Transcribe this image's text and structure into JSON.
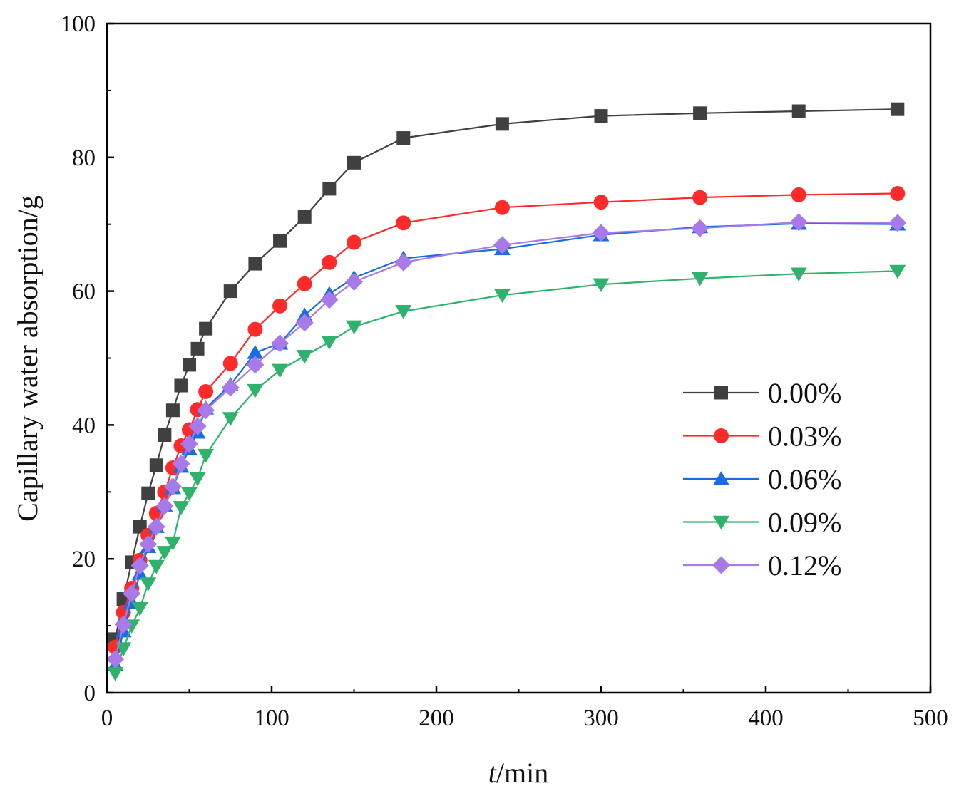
{
  "chart_data": {
    "type": "line",
    "title": "",
    "xlabel_italic": "t",
    "xlabel_rest": "/min",
    "ylabel": "Capillary water absorption/g",
    "xlim": [
      0,
      500
    ],
    "ylim": [
      0,
      100
    ],
    "xticks": [
      0,
      100,
      200,
      300,
      400,
      500
    ],
    "yticks": [
      0,
      20,
      40,
      60,
      80,
      100
    ],
    "grid": false,
    "legend_position": "center-right",
    "x": [
      5,
      10,
      15,
      20,
      25,
      30,
      35,
      40,
      45,
      50,
      55,
      60,
      75,
      90,
      105,
      120,
      135,
      150,
      180,
      240,
      300,
      360,
      420,
      480
    ],
    "series": [
      {
        "name": "0.00%",
        "color": "#404040",
        "marker": "square",
        "values": [
          8.0,
          14.0,
          19.5,
          24.8,
          29.8,
          34.0,
          38.5,
          42.2,
          45.9,
          49.0,
          51.4,
          54.4,
          60.0,
          64.1,
          67.5,
          71.1,
          75.3,
          79.2,
          82.9,
          85.0,
          86.2,
          86.6,
          86.9,
          87.2
        ]
      },
      {
        "name": "0.03%",
        "color": "#ff2b2b",
        "marker": "circle",
        "values": [
          6.8,
          12.0,
          15.6,
          19.8,
          23.5,
          26.8,
          30.0,
          33.6,
          36.9,
          39.3,
          42.3,
          45.0,
          49.2,
          54.3,
          57.8,
          61.1,
          64.3,
          67.3,
          70.2,
          72.5,
          73.3,
          74.0,
          74.4,
          74.6
        ]
      },
      {
        "name": "0.06%",
        "color": "#1a6de0",
        "marker": "triangle-up",
        "values": [
          4.2,
          9.2,
          13.5,
          17.8,
          21.8,
          24.8,
          28.0,
          30.6,
          33.8,
          36.4,
          38.9,
          42.5,
          46.0,
          50.8,
          52.2,
          56.4,
          59.6,
          62.0,
          64.9,
          66.3,
          68.4,
          69.6,
          70.1,
          70.0
        ]
      },
      {
        "name": "0.09%",
        "color": "#2fb36c",
        "marker": "triangle-down",
        "values": [
          2.9,
          6.6,
          10.0,
          12.6,
          16.3,
          18.9,
          21.0,
          22.4,
          27.7,
          29.8,
          32.0,
          35.5,
          41.0,
          45.2,
          48.2,
          50.3,
          52.4,
          54.7,
          57.0,
          59.4,
          61.0,
          61.9,
          62.6,
          63.0
        ]
      },
      {
        "name": "0.12%",
        "color": "#a879e8",
        "marker": "diamond",
        "values": [
          5.0,
          10.2,
          14.8,
          19.0,
          22.2,
          24.8,
          27.9,
          30.8,
          34.2,
          37.2,
          39.8,
          42.2,
          45.6,
          49.0,
          52.2,
          55.3,
          58.7,
          61.4,
          64.3,
          66.9,
          68.7,
          69.4,
          70.3,
          70.2
        ]
      }
    ]
  }
}
